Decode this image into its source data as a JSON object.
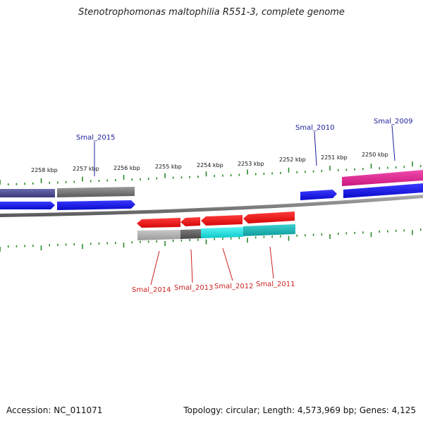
{
  "title": "Stenotrophomonas maltophilia R551-3, complete genome",
  "footer": {
    "accession": "Accession: NC_011071",
    "summary": "Topology: circular; Length: 4,573,969 bp; Genes: 4,125"
  },
  "ticks": [
    "2258 kbp",
    "2257 kbp",
    "2256 kbp",
    "2255 kbp",
    "2254 kbp",
    "2253 kbp",
    "2252 kbp",
    "2251 kbp",
    "2250 kbp"
  ],
  "colors": {
    "forward_label": "#1c1c9a",
    "reverse_label": "#cc1f1f",
    "cds_blue": "#1010e0",
    "cds_red": "#ee1111",
    "gene_gray": "#707070",
    "gene_indigo": "#4a4a90",
    "gene_cyan": "#16e0e0",
    "gene_magenta": "#ea2a9a",
    "tick_green": "#2a8a2a"
  },
  "labels_forward": [
    "Smal_2015",
    "Smal_2010",
    "Smal_2009"
  ],
  "labels_reverse": [
    "Smal_2014",
    "Smal_2013",
    "Smal_2012",
    "Smal_2011"
  ]
}
